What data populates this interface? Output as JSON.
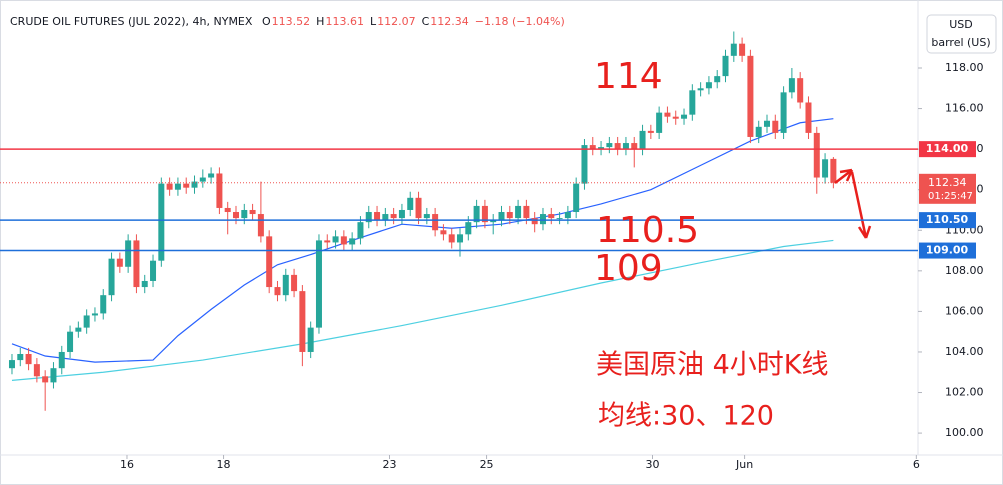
{
  "chart_data": {
    "type": "candlestick",
    "title": "CRUDE OIL FUTURES (JUL 2022), 4h, NYMEX",
    "ohlc_header": [
      {
        "key": "O",
        "value": 113.52
      },
      {
        "key": "H",
        "value": 113.61
      },
      {
        "key": "L",
        "value": 112.07
      },
      {
        "key": "C",
        "value": 112.34
      }
    ],
    "change": "−1.18 (−1.04%)",
    "currency": "USD",
    "unit": "barrel (US)",
    "up_color": "#26a69a",
    "down_color": "#ef5350",
    "open": [
      103.2,
      103.6,
      103.9,
      103.4,
      102.8,
      102.5,
      103.2,
      104.0,
      105.0,
      105.2,
      105.8,
      105.9,
      106.8,
      108.6,
      108.2,
      109.5,
      107.2,
      107.5,
      108.5,
      112.3,
      112.0,
      112.3,
      112.1,
      112.4,
      112.6,
      112.8,
      111.1,
      110.9,
      110.6,
      111.0,
      110.8,
      109.7,
      107.2,
      106.8,
      107.8,
      107.0,
      104.0,
      105.2,
      109.5,
      109.4,
      109.7,
      109.3,
      109.6,
      110.4,
      110.9,
      110.5,
      110.8,
      110.6,
      111.0,
      111.6,
      110.6,
      110.8,
      110.0,
      109.8,
      109.4,
      109.8,
      110.4,
      111.2,
      110.4,
      110.5,
      110.9,
      110.6,
      111.2,
      110.6,
      110.3,
      110.8,
      110.6,
      110.6,
      110.9,
      112.3,
      114.2,
      114.0,
      114.1,
      114.3,
      114.0,
      114.3,
      114.0,
      114.9,
      114.8,
      115.8,
      115.6,
      115.5,
      115.7,
      116.9,
      117.0,
      117.3,
      117.6,
      118.6,
      119.2,
      118.6,
      114.6,
      115.1,
      115.4,
      114.8,
      116.8,
      117.5,
      116.3,
      114.8,
      112.6,
      113.52
    ],
    "high": [
      103.9,
      104.2,
      104.2,
      103.7,
      103.1,
      103.5,
      104.3,
      105.3,
      105.5,
      106.1,
      106.2,
      107.1,
      108.9,
      108.9,
      109.8,
      109.8,
      107.8,
      108.8,
      112.6,
      112.6,
      112.6,
      112.6,
      112.7,
      113.0,
      113.1,
      113.1,
      111.4,
      111.2,
      111.3,
      111.3,
      112.4,
      110.0,
      107.5,
      108.1,
      108.1,
      107.3,
      105.5,
      109.8,
      109.8,
      110.0,
      110.0,
      109.9,
      110.7,
      111.2,
      111.2,
      111.1,
      111.1,
      111.3,
      111.9,
      111.9,
      111.1,
      111.1,
      110.3,
      110.1,
      110.1,
      110.7,
      111.5,
      111.5,
      110.8,
      111.2,
      111.2,
      111.5,
      111.5,
      110.9,
      111.1,
      111.1,
      110.9,
      111.2,
      112.6,
      114.5,
      114.6,
      114.4,
      114.6,
      114.6,
      114.6,
      114.6,
      115.2,
      115.2,
      116.1,
      116.1,
      115.9,
      116.0,
      117.2,
      117.3,
      117.6,
      117.9,
      118.9,
      119.8,
      119.5,
      118.9,
      115.4,
      115.7,
      115.7,
      117.1,
      118.0,
      117.8,
      116.6,
      115.1,
      113.8,
      113.61
    ],
    "low": [
      102.9,
      103.3,
      103.1,
      102.5,
      101.1,
      102.2,
      102.9,
      103.7,
      104.7,
      104.9,
      105.5,
      105.6,
      106.5,
      107.9,
      107.9,
      106.9,
      106.9,
      107.2,
      108.2,
      111.7,
      111.7,
      111.8,
      111.8,
      112.1,
      112.3,
      110.8,
      109.8,
      110.3,
      110.3,
      110.5,
      109.4,
      106.9,
      106.5,
      106.5,
      106.7,
      103.3,
      103.7,
      104.9,
      109.1,
      109.1,
      109.0,
      109.0,
      109.3,
      110.1,
      110.2,
      110.2,
      110.3,
      110.3,
      110.7,
      110.3,
      110.3,
      109.7,
      109.5,
      109.1,
      108.7,
      109.5,
      110.1,
      110.1,
      109.8,
      110.2,
      110.3,
      110.3,
      110.3,
      109.9,
      110.0,
      110.3,
      110.3,
      110.3,
      110.6,
      112.0,
      113.7,
      113.7,
      113.8,
      113.7,
      113.7,
      113.1,
      113.7,
      114.5,
      114.5,
      115.3,
      115.2,
      115.2,
      115.4,
      116.6,
      116.7,
      117.0,
      117.3,
      118.3,
      118.3,
      114.3,
      114.3,
      114.8,
      114.5,
      114.5,
      116.5,
      116.0,
      114.5,
      111.8,
      112.3,
      112.07
    ],
    "close": [
      103.6,
      103.9,
      103.4,
      102.8,
      102.5,
      103.2,
      104.0,
      105.0,
      105.2,
      105.8,
      105.9,
      106.8,
      108.6,
      108.2,
      109.5,
      107.2,
      107.5,
      108.5,
      112.3,
      112.0,
      112.3,
      112.1,
      112.4,
      112.6,
      112.8,
      111.1,
      110.9,
      110.6,
      111.0,
      110.8,
      109.7,
      107.2,
      106.8,
      107.8,
      107.0,
      104.0,
      105.2,
      109.5,
      109.4,
      109.7,
      109.3,
      109.6,
      110.4,
      110.9,
      110.5,
      110.8,
      110.6,
      111.0,
      111.6,
      110.6,
      110.8,
      110.0,
      109.8,
      109.4,
      109.8,
      110.4,
      111.2,
      110.4,
      110.5,
      110.9,
      110.6,
      111.2,
      110.6,
      110.3,
      110.8,
      110.6,
      110.6,
      110.9,
      112.3,
      114.2,
      114.0,
      114.1,
      114.3,
      114.0,
      114.3,
      114.0,
      114.9,
      114.8,
      115.8,
      115.6,
      115.5,
      115.7,
      116.9,
      117.0,
      117.3,
      117.6,
      118.6,
      119.2,
      118.6,
      114.6,
      115.1,
      115.4,
      114.8,
      116.8,
      117.5,
      116.3,
      114.8,
      112.6,
      113.5,
      112.34
    ],
    "moving_averages": [
      {
        "color": "#2962ff",
        "x": [
          0,
          4,
          10,
          17,
          20,
          24,
          28,
          32,
          36,
          41,
          47,
          53,
          59,
          66,
          71,
          77,
          83,
          89,
          95,
          99
        ],
        "values": [
          104.4,
          103.8,
          103.5,
          103.6,
          104.8,
          106.1,
          107.3,
          108.3,
          108.8,
          109.5,
          110.3,
          110.1,
          110.3,
          110.8,
          111.3,
          112.0,
          113.2,
          114.4,
          115.3,
          115.5
        ]
      },
      {
        "color": "#4dd0e1",
        "x": [
          0,
          11,
          23,
          35,
          47,
          59,
          71,
          83,
          93,
          99
        ],
        "values": [
          102.6,
          103.0,
          103.6,
          104.4,
          105.3,
          106.3,
          107.4,
          108.4,
          109.2,
          109.5
        ]
      }
    ],
    "levels": [
      {
        "value": 114,
        "label": "114.00",
        "color": "#f23645"
      },
      {
        "value": 110.5,
        "label": "110.50",
        "color": "#1e6fd9"
      },
      {
        "value": 109,
        "label": "109.00",
        "color": "#1e6fd9"
      }
    ],
    "last_price": {
      "value": 112.34,
      "label": "112.34",
      "countdown": "01:25:47"
    },
    "annotations": [
      "114",
      "110.5",
      "109",
      "美国原油 4小时K线",
      "均线:30、120"
    ],
    "xlim": [
      -0.48,
      109.2
    ],
    "xticks": [
      {
        "value": 13.86,
        "label": "16"
      },
      {
        "value": 25.5,
        "label": "18"
      },
      {
        "value": 45.5,
        "label": "23"
      },
      {
        "value": 57.2,
        "label": "25"
      },
      {
        "value": 77.2,
        "label": "30"
      },
      {
        "value": 88.3,
        "label": "Jun"
      },
      {
        "value": 109.0,
        "label": "6"
      }
    ],
    "ylim": [
      98.92,
      120.86
    ],
    "yticks": [
      {
        "value": 100,
        "label": "100.00"
      },
      {
        "value": 102,
        "label": "102.00"
      },
      {
        "value": 104,
        "label": "104.00"
      },
      {
        "value": 106,
        "label": "106.00"
      },
      {
        "value": 108,
        "label": "108.00"
      },
      {
        "value": 110,
        "label": "110.00"
      },
      {
        "value": 112,
        "label": "112.00"
      },
      {
        "value": 114,
        "label": "114.00"
      },
      {
        "value": 116,
        "label": "116.00"
      },
      {
        "value": 118,
        "label": "118.00"
      }
    ]
  }
}
